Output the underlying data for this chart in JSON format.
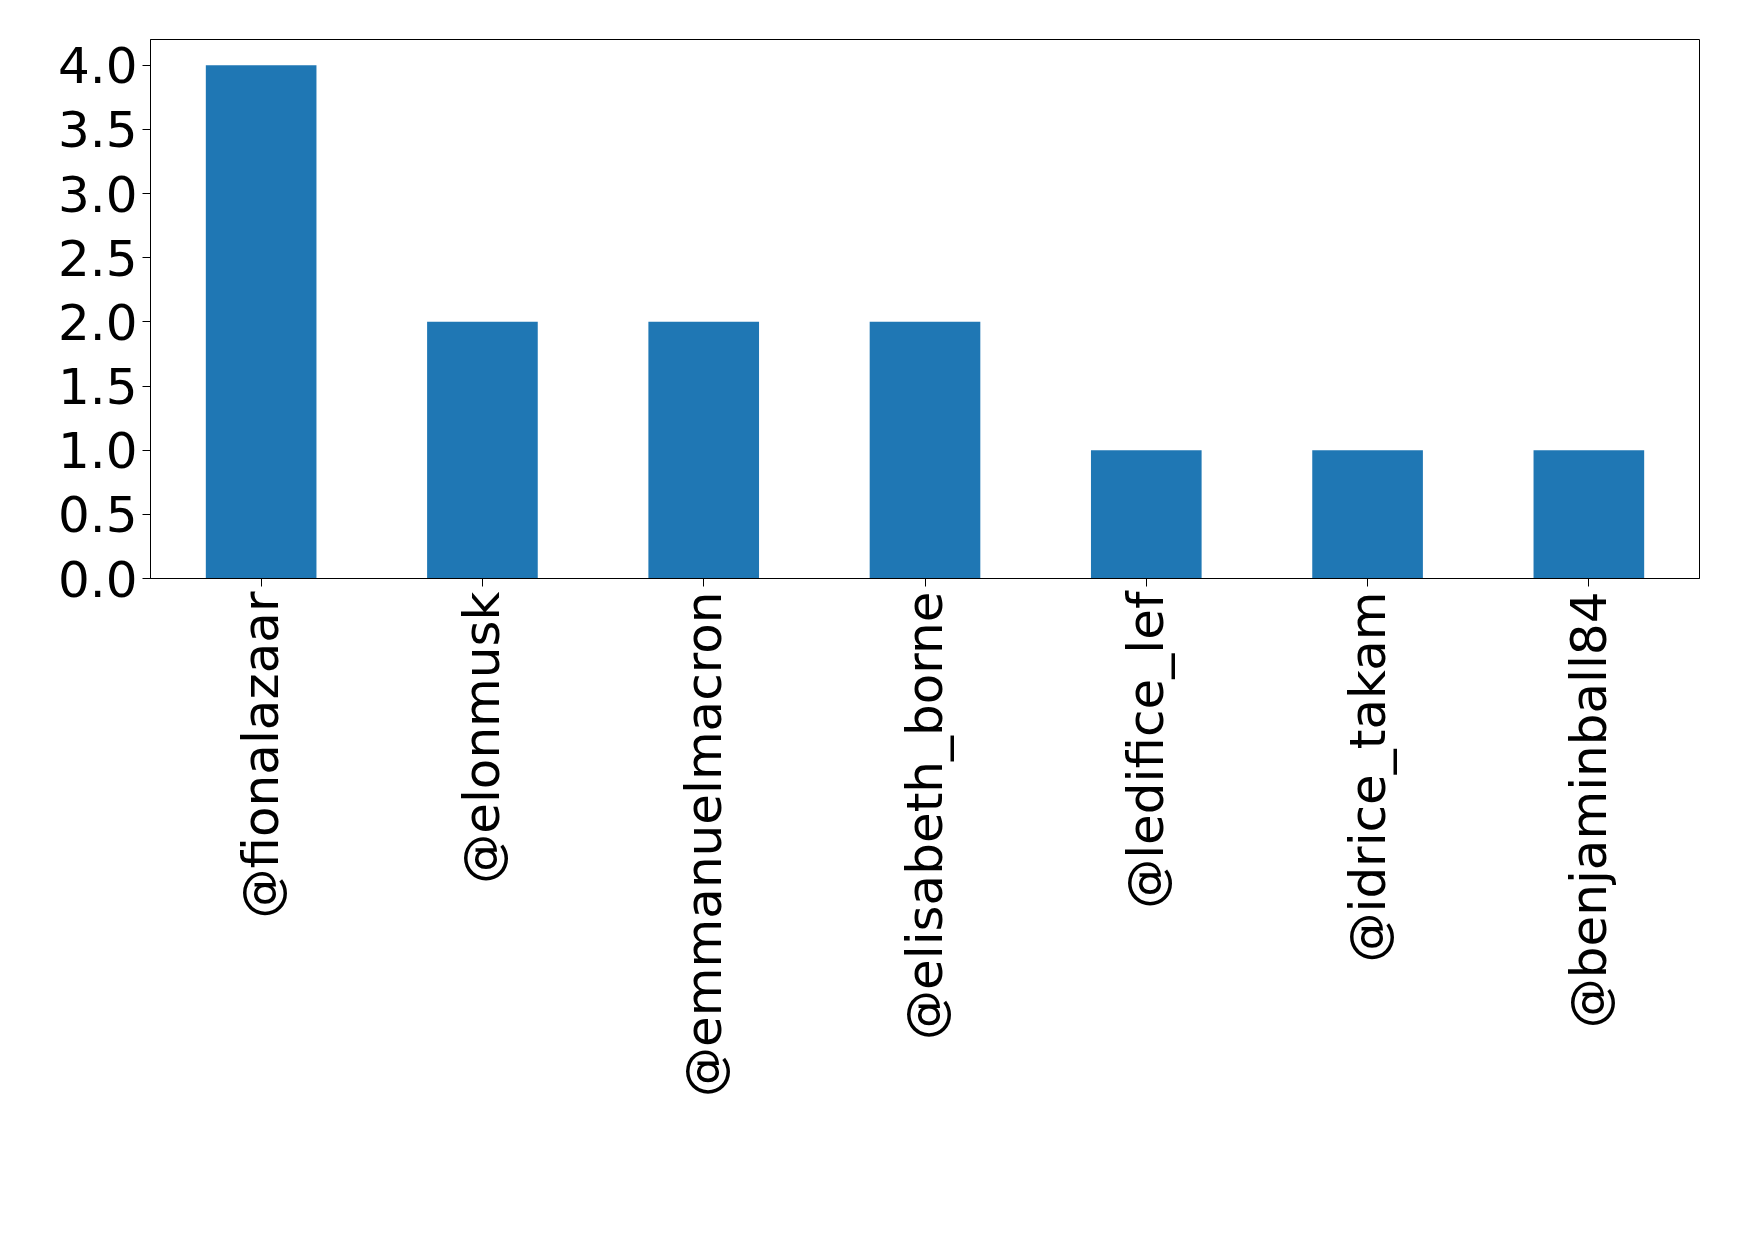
{
  "chart_data": {
    "type": "bar",
    "categories": [
      "@fionalazaar",
      "@elonmusk",
      "@emmanuelmacron",
      "@elisabeth_borne",
      "@ledifice_lef",
      "@idrice_takam",
      "@benjaminball84"
    ],
    "values": [
      4,
      2,
      2,
      2,
      1,
      1,
      1
    ],
    "color": "#1f77b4",
    "ylim": [
      0,
      4.2
    ],
    "yticks": [
      {
        "value": 0,
        "label": "0.0"
      },
      {
        "value": 0.5,
        "label": "0.5"
      },
      {
        "value": 1,
        "label": "1.0"
      },
      {
        "value": 1.5,
        "label": "1.5"
      },
      {
        "value": 2,
        "label": "2.0"
      },
      {
        "value": 2.5,
        "label": "2.5"
      },
      {
        "value": 3,
        "label": "3.0"
      },
      {
        "value": 3.5,
        "label": "3.5"
      },
      {
        "value": 4,
        "label": "4.0"
      }
    ],
    "grid": false
  }
}
